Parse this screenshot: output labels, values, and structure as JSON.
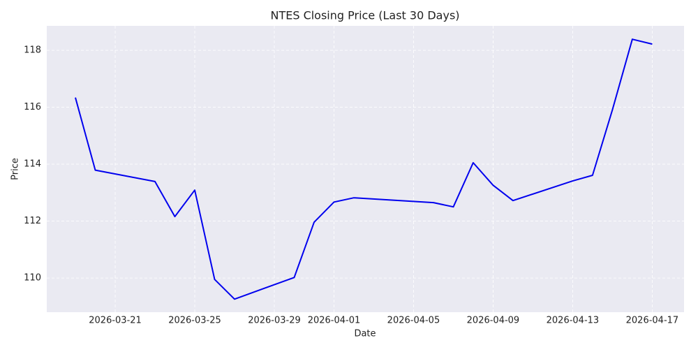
{
  "chart_data": {
    "type": "line",
    "title": "NTES Closing Price (Last 30 Days)",
    "x_label": "Date",
    "y_label": "Price",
    "x": [
      "2026-03-19",
      "2026-03-20",
      "2026-03-23",
      "2026-03-24",
      "2026-03-25",
      "2026-03-26",
      "2026-03-27",
      "2026-03-30",
      "2026-03-31",
      "2026-04-01",
      "2026-04-02",
      "2026-04-06",
      "2026-04-07",
      "2026-04-08",
      "2026-04-09",
      "2026-04-10",
      "2026-04-13",
      "2026-04-14",
      "2026-04-15",
      "2026-04-16",
      "2026-04-17"
    ],
    "series": [
      {
        "name": "NTES",
        "color": "#0000ee",
        "values": [
          116.34,
          113.79,
          113.39,
          112.16,
          113.09,
          109.95,
          109.26,
          110.02,
          111.96,
          112.67,
          112.82,
          112.65,
          112.5,
          114.05,
          113.26,
          112.72,
          113.41,
          113.61,
          115.91,
          118.39,
          118.22
        ]
      }
    ],
    "xlim": [
      "2026-03-17T13:26Z",
      "2026-04-18T14:24Z"
    ],
    "xticks": [
      "2026-03-21",
      "2026-03-25",
      "2026-03-29",
      "2026-04-01",
      "2026-04-05",
      "2026-04-09",
      "2026-04-13",
      "2026-04-17"
    ],
    "ylim": [
      108.8,
      118.86
    ],
    "yticks": [
      110,
      112,
      114,
      116,
      118
    ],
    "grid": true
  }
}
